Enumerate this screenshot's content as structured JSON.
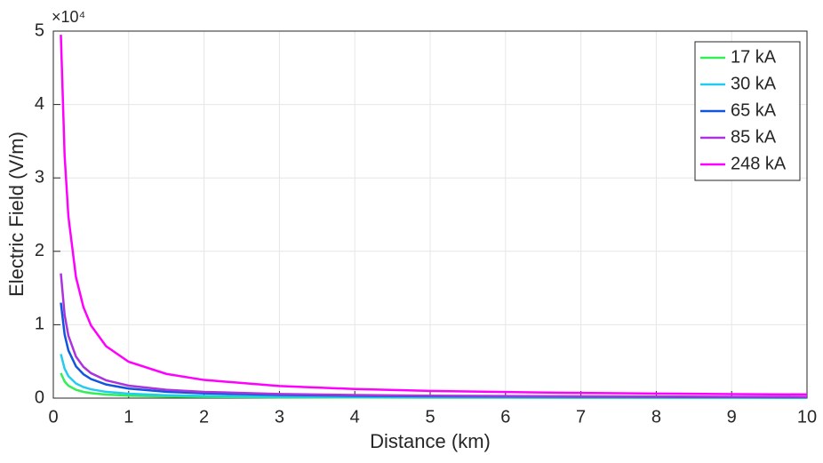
{
  "chart_data": {
    "type": "line",
    "xlabel": "Distance (km)",
    "ylabel": "Electric Field (V/m)",
    "y_exponent_label": "×10⁴",
    "x": [
      0.1,
      0.15,
      0.2,
      0.3,
      0.4,
      0.5,
      0.7,
      1,
      1.5,
      2,
      3,
      4,
      5,
      6,
      7,
      8,
      9,
      10
    ],
    "series": [
      {
        "name": "17 kA",
        "color": "#33ee55",
        "values": [
          3400,
          2267,
          1700,
          1133,
          850,
          680,
          486,
          340,
          227,
          170,
          113,
          85,
          68,
          57,
          49,
          43,
          38,
          34
        ]
      },
      {
        "name": "30 kA",
        "color": "#22ccee",
        "values": [
          6000,
          4000,
          3000,
          2000,
          1500,
          1200,
          857,
          600,
          400,
          300,
          200,
          150,
          120,
          100,
          86,
          75,
          67,
          60
        ]
      },
      {
        "name": "65 kA",
        "color": "#1155dd",
        "values": [
          13000,
          8667,
          6500,
          4333,
          3250,
          2600,
          1857,
          1300,
          867,
          650,
          433,
          325,
          260,
          217,
          186,
          163,
          144,
          130
        ]
      },
      {
        "name": "85 kA",
        "color": "#aa33dd",
        "values": [
          17000,
          11333,
          8500,
          5667,
          4250,
          3400,
          2429,
          1700,
          1133,
          850,
          567,
          425,
          340,
          283,
          243,
          213,
          189,
          170
        ]
      },
      {
        "name": "248 kA",
        "color": "#ff00ff",
        "values": [
          49500,
          33000,
          24750,
          16500,
          12375,
          9900,
          7071,
          4950,
          3300,
          2475,
          1650,
          1238,
          990,
          825,
          707,
          619,
          550,
          495
        ]
      }
    ],
    "xlim": [
      0,
      10
    ],
    "xticks": [
      0,
      1,
      2,
      3,
      4,
      5,
      6,
      7,
      8,
      9,
      10
    ],
    "ylim": [
      0,
      50000
    ],
    "yticks": [
      {
        "value": 0,
        "label": "0"
      },
      {
        "value": 10000,
        "label": "1"
      },
      {
        "value": 20000,
        "label": "2"
      },
      {
        "value": 30000,
        "label": "3"
      },
      {
        "value": 40000,
        "label": "4"
      },
      {
        "value": 50000,
        "label": "5"
      }
    ],
    "grid": true,
    "legend": "northeast"
  }
}
